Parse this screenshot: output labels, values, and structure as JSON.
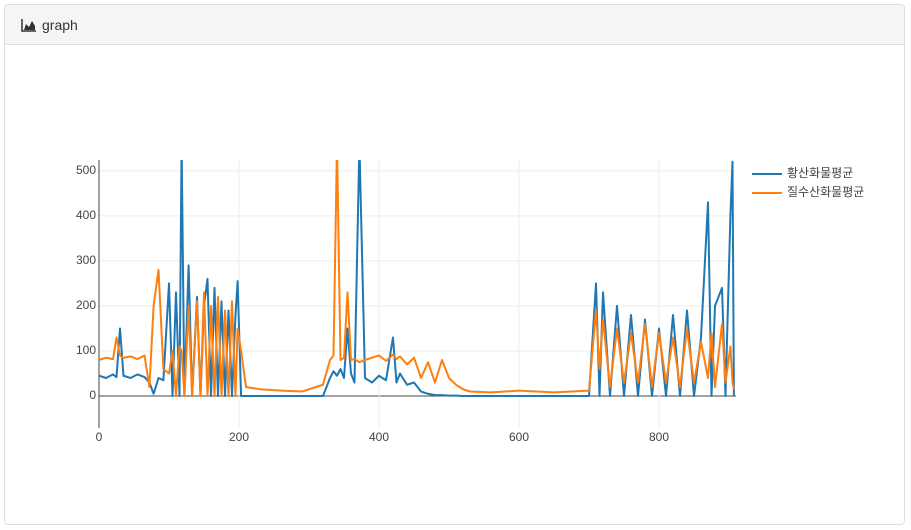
{
  "header": {
    "title": "graph"
  },
  "chart_data": {
    "type": "line",
    "x": [
      0,
      10,
      20,
      25,
      30,
      35,
      45,
      55,
      65,
      72,
      78,
      85,
      92,
      100,
      105,
      110,
      115,
      118,
      122,
      128,
      133,
      140,
      145,
      150,
      155,
      160,
      165,
      170,
      175,
      180,
      185,
      190,
      195,
      198,
      203,
      210,
      230,
      260,
      290,
      320,
      330,
      335,
      340,
      345,
      350,
      355,
      360,
      365,
      372,
      380,
      390,
      400,
      410,
      420,
      425,
      430,
      440,
      450,
      460,
      470,
      480,
      490,
      500,
      510,
      520,
      530,
      560,
      600,
      650,
      700,
      710,
      715,
      720,
      730,
      740,
      750,
      760,
      770,
      780,
      790,
      800,
      810,
      820,
      830,
      840,
      850,
      860,
      870,
      875,
      880,
      890,
      895,
      902,
      905,
      907
    ],
    "series": [
      {
        "name": "황산화물평균",
        "color": "#1f77b4",
        "values": [
          45,
          40,
          48,
          42,
          150,
          45,
          40,
          48,
          42,
          30,
          5,
          40,
          35,
          250,
          0,
          230,
          0,
          560,
          0,
          290,
          0,
          220,
          0,
          200,
          260,
          0,
          240,
          0,
          210,
          0,
          190,
          0,
          180,
          255,
          0,
          0,
          0,
          0,
          0,
          0,
          40,
          55,
          45,
          60,
          40,
          150,
          50,
          30,
          560,
          40,
          30,
          45,
          35,
          130,
          30,
          50,
          25,
          30,
          10,
          5,
          2,
          2,
          1,
          1,
          0,
          0,
          0,
          0,
          0,
          0,
          250,
          0,
          230,
          0,
          200,
          0,
          180,
          0,
          170,
          0,
          150,
          0,
          180,
          0,
          190,
          0,
          130,
          430,
          0,
          200,
          240,
          0,
          400,
          520,
          0
        ]
      },
      {
        "name": "질수산화물평균",
        "color": "#ff7f0e",
        "values": [
          80,
          85,
          82,
          130,
          90,
          85,
          88,
          82,
          90,
          20,
          200,
          280,
          60,
          50,
          100,
          0,
          110,
          100,
          0,
          200,
          0,
          210,
          0,
          230,
          0,
          200,
          0,
          220,
          0,
          190,
          0,
          210,
          0,
          150,
          100,
          20,
          15,
          12,
          10,
          25,
          80,
          90,
          560,
          80,
          85,
          230,
          80,
          82,
          75,
          80,
          85,
          90,
          78,
          92,
          82,
          88,
          70,
          85,
          40,
          75,
          30,
          80,
          40,
          25,
          15,
          10,
          8,
          12,
          8,
          12,
          190,
          60,
          170,
          20,
          150,
          30,
          140,
          30,
          160,
          20,
          140,
          30,
          130,
          20,
          150,
          30,
          120,
          40,
          140,
          20,
          160,
          30,
          110,
          30,
          15
        ]
      }
    ],
    "xlim": [
      0,
      910
    ],
    "xticks": [
      0,
      200,
      400,
      600,
      800
    ],
    "ylim": [
      -71,
      524
    ],
    "yticks": [
      0,
      100,
      200,
      300,
      400,
      500
    ],
    "grid": true,
    "legend": "right"
  }
}
